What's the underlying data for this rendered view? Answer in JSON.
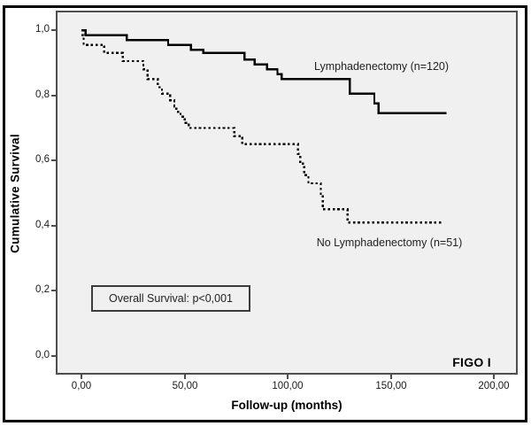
{
  "annotations": {
    "pvalue_box": "Overall Survival: p<0,001",
    "stage_label": "FIGO I"
  },
  "chart_data": {
    "type": "line",
    "subtype": "kaplan_meier_step",
    "title": "",
    "xlabel": "Follow-up (months)",
    "ylabel": "Cumulative Survival",
    "xlim": [
      -12.5,
      211.5
    ],
    "ylim": [
      -0.057,
      1.06
    ],
    "grid": false,
    "legend": "inline-labels",
    "decimal_separator": ",",
    "x_ticks": [
      {
        "value": 0,
        "label": "0,00"
      },
      {
        "value": 50,
        "label": "50,00"
      },
      {
        "value": 100,
        "label": "100,00"
      },
      {
        "value": 150,
        "label": "150,00"
      },
      {
        "value": 200,
        "label": "200,00"
      }
    ],
    "y_ticks": [
      {
        "value": 0.0,
        "label": "0,0"
      },
      {
        "value": 0.2,
        "label": "0,2"
      },
      {
        "value": 0.4,
        "label": "0,4"
      },
      {
        "value": 0.6,
        "label": "0,6"
      },
      {
        "value": 0.8,
        "label": "0,8"
      },
      {
        "value": 1.0,
        "label": "1,0"
      }
    ],
    "series": [
      {
        "name": "Lymphadenectomy (n=120)",
        "n": 120,
        "line_style": "solid",
        "color": "#000000",
        "points": [
          [
            0,
            1.0
          ],
          [
            2,
            0.985
          ],
          [
            22,
            0.97
          ],
          [
            42,
            0.955
          ],
          [
            53,
            0.94
          ],
          [
            59,
            0.93
          ],
          [
            79,
            0.91
          ],
          [
            84,
            0.895
          ],
          [
            90,
            0.88
          ],
          [
            95,
            0.865
          ],
          [
            97,
            0.85
          ],
          [
            130,
            0.805
          ],
          [
            142,
            0.775
          ],
          [
            144,
            0.745
          ],
          [
            177,
            0.745
          ]
        ]
      },
      {
        "name": "No Lymphadenectomy (n=51)",
        "n": 51,
        "line_style": "dotted",
        "color": "#000000",
        "points": [
          [
            0,
            1.0
          ],
          [
            0.5,
            0.985
          ],
          [
            1,
            0.955
          ],
          [
            11,
            0.93
          ],
          [
            20,
            0.905
          ],
          [
            30,
            0.88
          ],
          [
            32,
            0.85
          ],
          [
            37,
            0.825
          ],
          [
            39,
            0.805
          ],
          [
            43,
            0.785
          ],
          [
            45,
            0.765
          ],
          [
            46,
            0.75
          ],
          [
            48,
            0.735
          ],
          [
            50,
            0.715
          ],
          [
            52,
            0.7
          ],
          [
            74,
            0.675
          ],
          [
            78,
            0.65
          ],
          [
            105,
            0.62
          ],
          [
            106,
            0.59
          ],
          [
            108,
            0.555
          ],
          [
            110,
            0.53
          ],
          [
            116,
            0.49
          ],
          [
            117,
            0.45
          ],
          [
            129,
            0.41
          ],
          [
            175,
            0.41
          ]
        ]
      }
    ]
  }
}
